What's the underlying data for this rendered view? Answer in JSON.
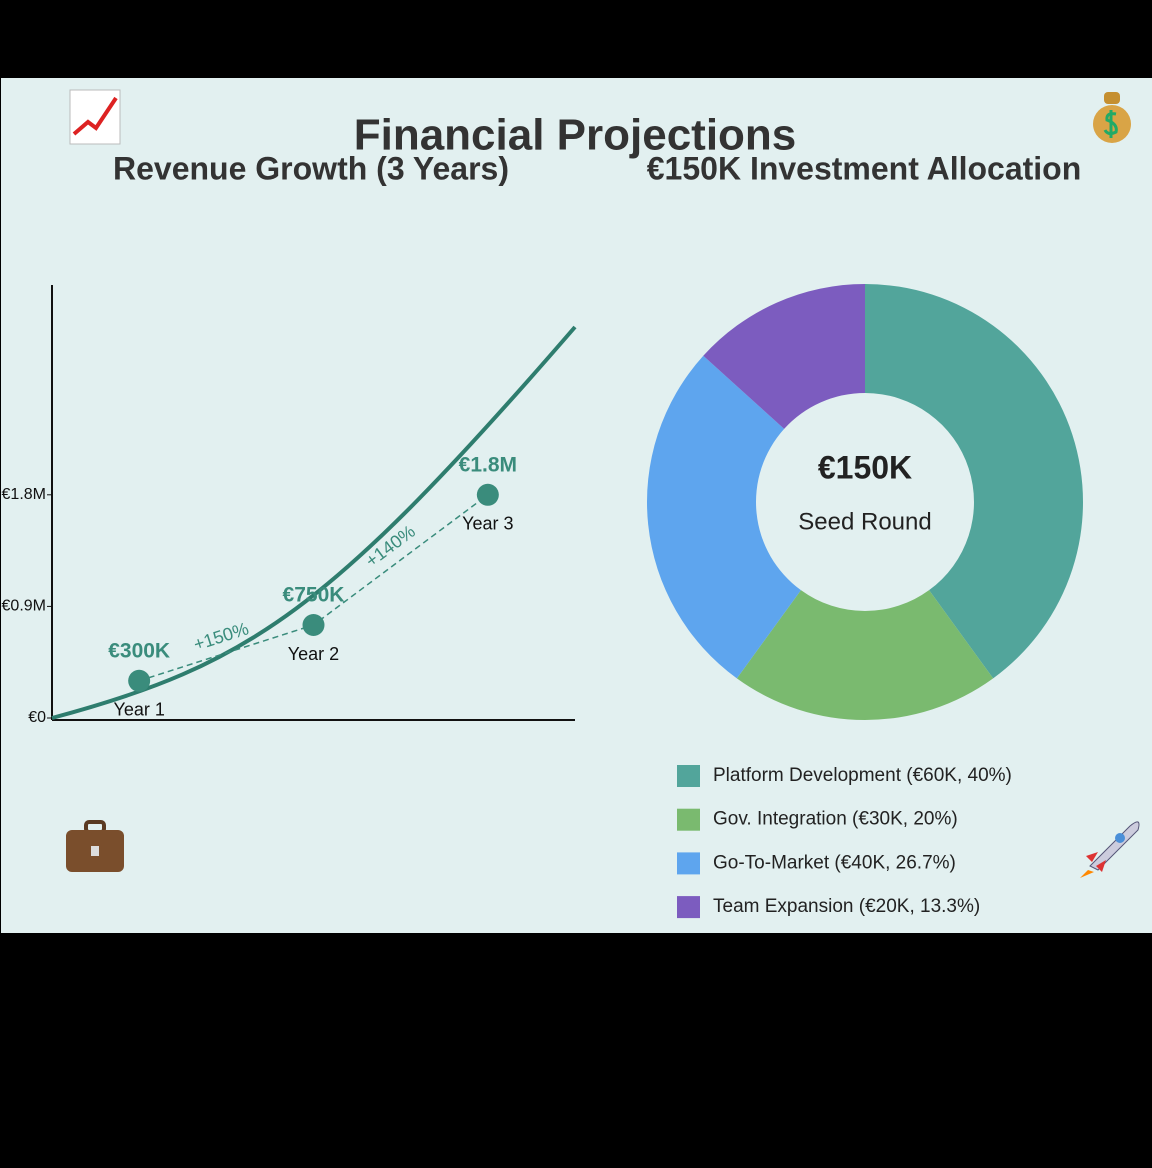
{
  "title": "Financial Projections",
  "chart_data": [
    {
      "type": "line",
      "title": "Revenue Growth (3 Years)",
      "categories": [
        "Year 1",
        "Year 2",
        "Year 3"
      ],
      "values": [
        300000,
        750000,
        1800000
      ],
      "value_labels": [
        "€300K",
        "€750K",
        "€1.8M"
      ],
      "annotations": [
        "+150%",
        "+140%"
      ],
      "color": "#3a8c7c",
      "ylim": [
        0,
        3500000
      ],
      "yticks": [
        {
          "value": 0,
          "label": "€0"
        },
        {
          "value": 900000,
          "label": "€0.9M"
        },
        {
          "value": 1800000,
          "label": "€1.8M"
        }
      ]
    },
    {
      "type": "donut",
      "title": "€150K Investment Allocation",
      "center_text": "€150K",
      "center_subtitle": "Seed Round",
      "categories": [
        "Platform Development (€60K, 40%)",
        "Gov. Integration (€30K, 20%)",
        "Go-To-Market (€40K, 26.7%)",
        "Team Expansion (€20K, 13.3%)"
      ],
      "values": [
        40,
        20,
        26.7,
        13.3
      ],
      "colors": [
        "#52a59b",
        "#7aba6f",
        "#5ea5ee",
        "#7c5cbf"
      ]
    }
  ]
}
